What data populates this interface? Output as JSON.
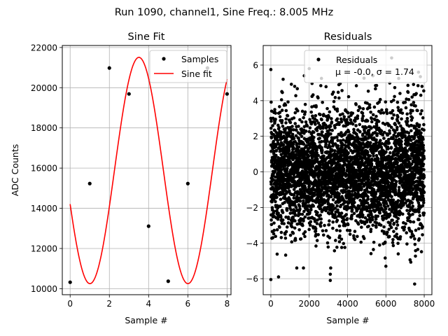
{
  "figure": {
    "suptitle": "Run 1090, channel1, Sine Freq.: 8.005 MHz"
  },
  "chart_data": [
    {
      "type": "line",
      "title": "Sine Fit",
      "xlabel": "Sample #",
      "ylabel": "ADC Counts",
      "xlim": [
        -0.4,
        8.2
      ],
      "ylim": [
        9700,
        22100
      ],
      "xticks": [
        0,
        2,
        4,
        6,
        8
      ],
      "yticks": [
        10000,
        12000,
        14000,
        16000,
        18000,
        20000,
        22000
      ],
      "grid": true,
      "legend": {
        "location": "upper-right",
        "entries": [
          "Samples",
          "Sine fit"
        ]
      },
      "series": [
        {
          "name": "Samples",
          "style": "markers",
          "color": "#000000",
          "x": [
            0,
            1,
            2,
            3,
            4,
            5,
            6,
            7,
            8
          ],
          "y": [
            10320,
            15230,
            20980,
            19690,
            13110,
            10370,
            15230,
            20980,
            19690
          ]
        },
        {
          "name": "Sine fit",
          "style": "line",
          "color": "#ff0000",
          "model": {
            "amplitude": 5630,
            "offset": 15880,
            "cycles_per_sample": 0.2002,
            "phase_rad": -2.84
          },
          "x_range": [
            0,
            8
          ]
        }
      ]
    },
    {
      "type": "scatter",
      "title": "Residuals",
      "xlabel": "Sample #",
      "xlim": [
        -400,
        8400
      ],
      "ylim": [
        -6.9,
        7.1
      ],
      "xticks": [
        0,
        2000,
        4000,
        6000,
        8000
      ],
      "yticks": [
        -6,
        -4,
        -2,
        0,
        2,
        4,
        6
      ],
      "grid": true,
      "legend": {
        "location": "upper-right",
        "entries": [
          "Residuals"
        ],
        "stats_text": "μ = -0.0, σ = 1.74"
      },
      "series": [
        {
          "name": "Residuals",
          "color": "#000000",
          "mean": -0.0,
          "std": 1.74,
          "n_points": 8000,
          "x_range": [
            0,
            8000
          ],
          "outliers": [
            {
              "x": 0,
              "y": 5.75
            },
            {
              "x": 0,
              "y": -6.05
            },
            {
              "x": 400,
              "y": -5.9
            },
            {
              "x": 2000,
              "y": 5.8
            },
            {
              "x": 3100,
              "y": -6.1
            },
            {
              "x": 3100,
              "y": -5.75
            },
            {
              "x": 6300,
              "y": 6.4
            },
            {
              "x": 7500,
              "y": -6.3
            },
            {
              "x": 7700,
              "y": 5.6
            },
            {
              "x": 6000,
              "y": -5.3
            },
            {
              "x": 1700,
              "y": -5.4
            },
            {
              "x": 7800,
              "y": 5.35
            }
          ]
        }
      ]
    }
  ]
}
